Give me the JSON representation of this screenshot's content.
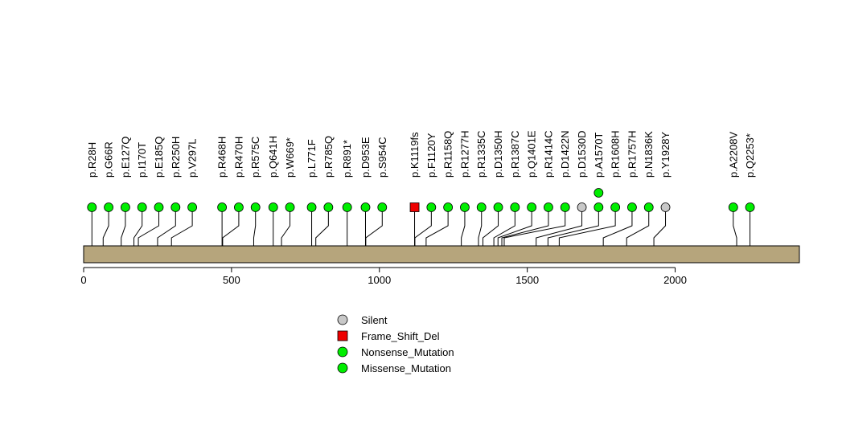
{
  "chart_data": {
    "type": "lollipop",
    "title": "",
    "xlabel": "",
    "ylabel": "",
    "xlim": [
      0,
      2420
    ],
    "xticks": [
      0,
      500,
      1000,
      1500,
      2000
    ],
    "protein_length": 2420,
    "colors": {
      "protein_bar": "#b6a57c",
      "missense": "#00ee00",
      "nonsense": "#00ee00",
      "silent": "#c8c8c8",
      "frame_shift_del": "#ee0000",
      "axis": "#000000"
    },
    "mutations": [
      {
        "label": "p.R28H",
        "position": 28,
        "type": "Missense_Mutation",
        "count": 1
      },
      {
        "label": "p.G66R",
        "position": 66,
        "type": "Missense_Mutation",
        "count": 1
      },
      {
        "label": "p.E127Q",
        "position": 127,
        "type": "Missense_Mutation",
        "count": 1
      },
      {
        "label": "p.I170T",
        "position": 170,
        "type": "Missense_Mutation",
        "count": 1
      },
      {
        "label": "p.E185Q",
        "position": 185,
        "type": "Missense_Mutation",
        "count": 1
      },
      {
        "label": "p.R250H",
        "position": 250,
        "type": "Missense_Mutation",
        "count": 1
      },
      {
        "label": "p.V297L",
        "position": 297,
        "type": "Missense_Mutation",
        "count": 1
      },
      {
        "label": "p.R468H",
        "position": 468,
        "type": "Missense_Mutation",
        "count": 1
      },
      {
        "label": "p.R470H",
        "position": 470,
        "type": "Missense_Mutation",
        "count": 1
      },
      {
        "label": "p.R575C",
        "position": 575,
        "type": "Missense_Mutation",
        "count": 1
      },
      {
        "label": "p.Q641H",
        "position": 641,
        "type": "Missense_Mutation",
        "count": 1
      },
      {
        "label": "p.W669*",
        "position": 669,
        "type": "Nonsense_Mutation",
        "count": 1
      },
      {
        "label": "p.L771F",
        "position": 771,
        "type": "Missense_Mutation",
        "count": 1
      },
      {
        "label": "p.R785Q",
        "position": 785,
        "type": "Missense_Mutation",
        "count": 1
      },
      {
        "label": "p.R891*",
        "position": 891,
        "type": "Nonsense_Mutation",
        "count": 1
      },
      {
        "label": "p.D953E",
        "position": 953,
        "type": "Missense_Mutation",
        "count": 1
      },
      {
        "label": "p.S954C",
        "position": 954,
        "type": "Missense_Mutation",
        "count": 1
      },
      {
        "label": "p.K1119fs",
        "position": 1119,
        "type": "Frame_Shift_Del",
        "count": 1
      },
      {
        "label": "p.F1120Y",
        "position": 1120,
        "type": "Missense_Mutation",
        "count": 1
      },
      {
        "label": "p.R1158Q",
        "position": 1158,
        "type": "Missense_Mutation",
        "count": 1
      },
      {
        "label": "p.R1277H",
        "position": 1277,
        "type": "Missense_Mutation",
        "count": 1
      },
      {
        "label": "p.R1335C",
        "position": 1335,
        "type": "Missense_Mutation",
        "count": 1
      },
      {
        "label": "p.D1350H",
        "position": 1350,
        "type": "Missense_Mutation",
        "count": 1
      },
      {
        "label": "p.R1387C",
        "position": 1387,
        "type": "Missense_Mutation",
        "count": 1
      },
      {
        "label": "p.Q1401E",
        "position": 1401,
        "type": "Missense_Mutation",
        "count": 1
      },
      {
        "label": "p.R1414C",
        "position": 1414,
        "type": "Missense_Mutation",
        "count": 1
      },
      {
        "label": "p.D1422N",
        "position": 1422,
        "type": "Missense_Mutation",
        "count": 1
      },
      {
        "label": "p.D1530D",
        "position": 1530,
        "type": "Silent",
        "count": 1
      },
      {
        "label": "p.A1570T",
        "position": 1570,
        "type": "Missense_Mutation",
        "count": 2
      },
      {
        "label": "p.R1608H",
        "position": 1608,
        "type": "Missense_Mutation",
        "count": 1
      },
      {
        "label": "p.R1757H",
        "position": 1757,
        "type": "Missense_Mutation",
        "count": 1
      },
      {
        "label": "p.N1836K",
        "position": 1836,
        "type": "Missense_Mutation",
        "count": 1
      },
      {
        "label": "p.Y1928Y",
        "position": 1928,
        "type": "Silent",
        "count": 1
      },
      {
        "label": "p.A2208V",
        "position": 2208,
        "type": "Missense_Mutation",
        "count": 1
      },
      {
        "label": "p.Q2253*",
        "position": 2253,
        "type": "Nonsense_Mutation",
        "count": 1
      }
    ],
    "legend": [
      {
        "label": "Silent",
        "marker": "circle",
        "color": "#c8c8c8"
      },
      {
        "label": "Frame_Shift_Del",
        "marker": "square",
        "color": "#ee0000"
      },
      {
        "label": "Nonsense_Mutation",
        "marker": "circle",
        "color": "#00ee00"
      },
      {
        "label": "Missense_Mutation",
        "marker": "circle",
        "color": "#00ee00"
      }
    ]
  }
}
